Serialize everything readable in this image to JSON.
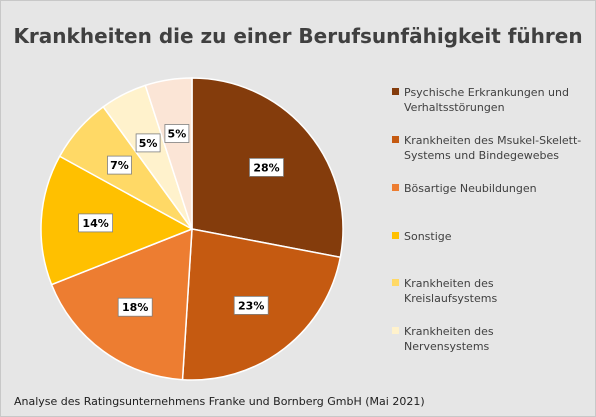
{
  "chart_data": {
    "type": "pie",
    "title": "Krankheiten die zu einer Berufsunfähigkeit führen",
    "categories": [
      "Psychische Erkrankungen und Verhaltsstörungen",
      "Krankheiten des Msukel-Skelett-Systems und Bindegewebes",
      "Bösartige Neubildungen",
      "Sonstige",
      "Krankheiten des Kreislaufsystems",
      "Krankheiten des Nervensystems"
    ],
    "values": [
      28,
      23,
      18,
      14,
      7,
      5
    ],
    "value_labels": [
      "28%",
      "23%",
      "18%",
      "14%",
      "7%",
      "5%"
    ],
    "colors": [
      "#843C0C",
      "#C55A11",
      "#ED7D31",
      "#FFC000",
      "#FFD966",
      "#FFF2CC"
    ],
    "extra_slice": {
      "value": 5,
      "label": "5%",
      "color": "#FBE5D6"
    },
    "legend_position": "right",
    "source": "Analyse des Ratingsunternehmens Franke und Bornberg GmbH (Mai 2021)"
  }
}
